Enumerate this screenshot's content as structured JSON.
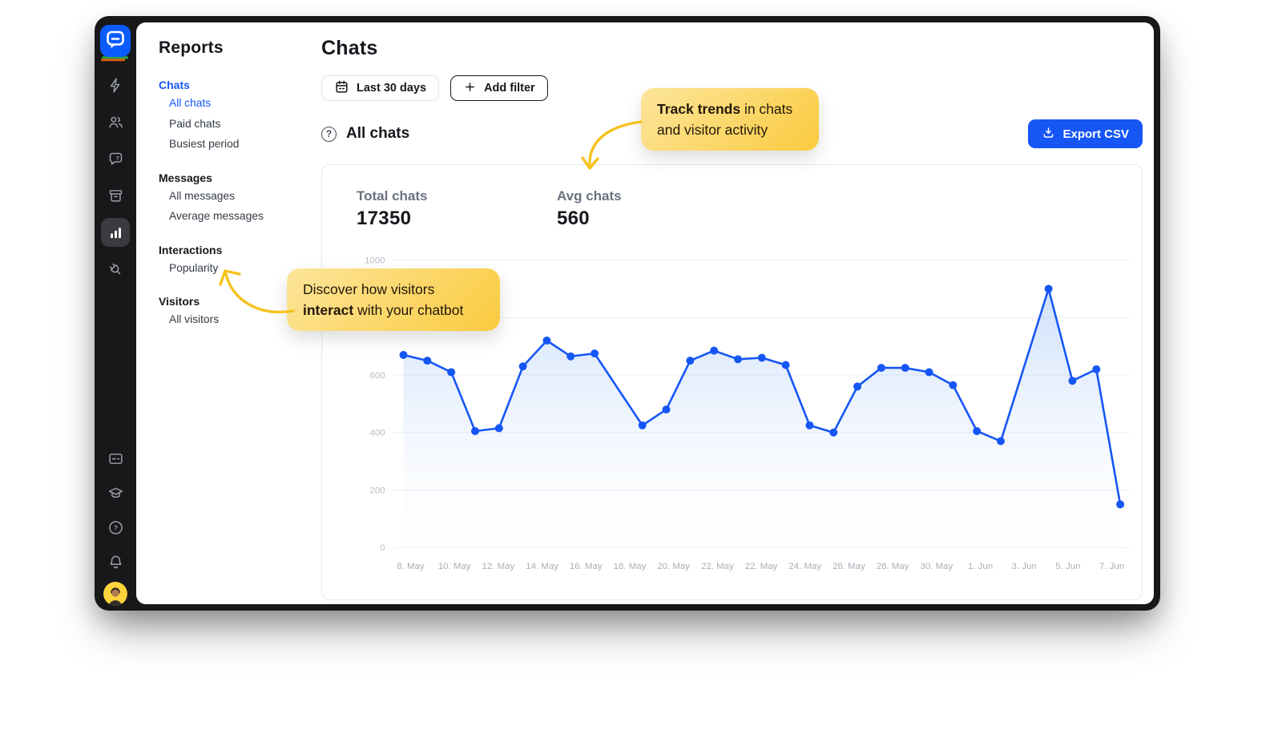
{
  "nav": {
    "title": "Reports",
    "sections": [
      {
        "label": "Chats",
        "active": true,
        "items": [
          {
            "label": "All chats",
            "active": true
          },
          {
            "label": "Paid chats"
          },
          {
            "label": "Busiest period"
          }
        ]
      },
      {
        "label": "Messages",
        "items": [
          {
            "label": "All messages"
          },
          {
            "label": "Average messages"
          }
        ]
      },
      {
        "label": "Interactions",
        "items": [
          {
            "label": "Popularity"
          }
        ]
      },
      {
        "label": "Visitors",
        "items": [
          {
            "label": "All visitors"
          }
        ]
      }
    ]
  },
  "header": {
    "title": "Chats",
    "date_range": "Last 30 days",
    "add_filter": "Add filter"
  },
  "section": {
    "title": "All chats",
    "export_label": "Export CSV"
  },
  "stats": [
    {
      "label": "Total chats",
      "value": "17350"
    },
    {
      "label": "Avg chats",
      "value": "560"
    }
  ],
  "callouts": [
    {
      "name": "track-trends",
      "segments": [
        {
          "text": "Track trends",
          "bold": true
        },
        {
          "text": " in chats and visitor activity",
          "bold": false
        }
      ]
    },
    {
      "name": "discover-interact",
      "segments": [
        {
          "text": "Discover how visitors ",
          "bold": false
        },
        {
          "text": "interact",
          "bold": true
        },
        {
          "text": " with your chatbot",
          "bold": false
        }
      ]
    }
  ],
  "rail": {
    "top_icons": [
      {
        "name": "flash-icon"
      },
      {
        "name": "users-icon"
      },
      {
        "name": "chat-question-icon"
      },
      {
        "name": "archive-icon"
      },
      {
        "name": "bar-chart-icon",
        "active": true
      },
      {
        "name": "plug-icon"
      }
    ],
    "bottom_icons": [
      {
        "name": "credit-card-icon"
      },
      {
        "name": "graduation-cap-icon"
      },
      {
        "name": "help-icon"
      },
      {
        "name": "bell-icon"
      }
    ]
  },
  "chart_data": {
    "type": "line",
    "title": "All chats",
    "series_name": "Chats",
    "ylabel": "",
    "xlabel": "",
    "ylim": [
      0,
      1000
    ],
    "y_ticks": [
      0,
      200,
      400,
      600,
      800,
      1000
    ],
    "grid": "horizontal",
    "area_fill": true,
    "legend": "none",
    "x_labels": [
      "8. May",
      "10. May",
      "12. May",
      "14. May",
      "16. May",
      "18. May",
      "20. May",
      "22. May",
      "22. May",
      "24. May",
      "26. May",
      "28. May",
      "30. May",
      "1. Jun",
      "3. Jun",
      "5. Jun",
      "7. Jun"
    ],
    "summary": {
      "total_chats": 17350,
      "avg_chats": 560
    },
    "points": [
      {
        "day": 0,
        "value": 670
      },
      {
        "day": 1,
        "value": 650
      },
      {
        "day": 2,
        "value": 610
      },
      {
        "day": 3,
        "value": 405
      },
      {
        "day": 4,
        "value": 415
      },
      {
        "day": 5,
        "value": 630
      },
      {
        "day": 6,
        "value": 720
      },
      {
        "day": 7,
        "value": 665
      },
      {
        "day": 8,
        "value": 675
      },
      {
        "day": 10,
        "value": 425
      },
      {
        "day": 11,
        "value": 480
      },
      {
        "day": 12,
        "value": 650
      },
      {
        "day": 13,
        "value": 685
      },
      {
        "day": 14,
        "value": 655
      },
      {
        "day": 15,
        "value": 660
      },
      {
        "day": 16,
        "value": 635
      },
      {
        "day": 17,
        "value": 425
      },
      {
        "day": 18,
        "value": 400
      },
      {
        "day": 19,
        "value": 560
      },
      {
        "day": 20,
        "value": 625
      },
      {
        "day": 21,
        "value": 625
      },
      {
        "day": 22,
        "value": 610
      },
      {
        "day": 23,
        "value": 565
      },
      {
        "day": 24,
        "value": 405
      },
      {
        "day": 25,
        "value": 370
      },
      {
        "day": 27,
        "value": 900
      },
      {
        "day": 28,
        "value": 580
      },
      {
        "day": 29,
        "value": 620
      },
      {
        "day": 30,
        "value": 150
      }
    ]
  },
  "colors": {
    "accent": "#1656F5",
    "line": "#1656F5",
    "area_top": "rgba(122,170,243,0.45)",
    "area_bottom": "rgba(255,255,255,0)",
    "callout_from": "#FDE59B",
    "callout_to": "#FACB3F",
    "arrow": "#F6C21D",
    "rail_bg": "#18181A",
    "avatar_bg": "#FFD43B"
  }
}
